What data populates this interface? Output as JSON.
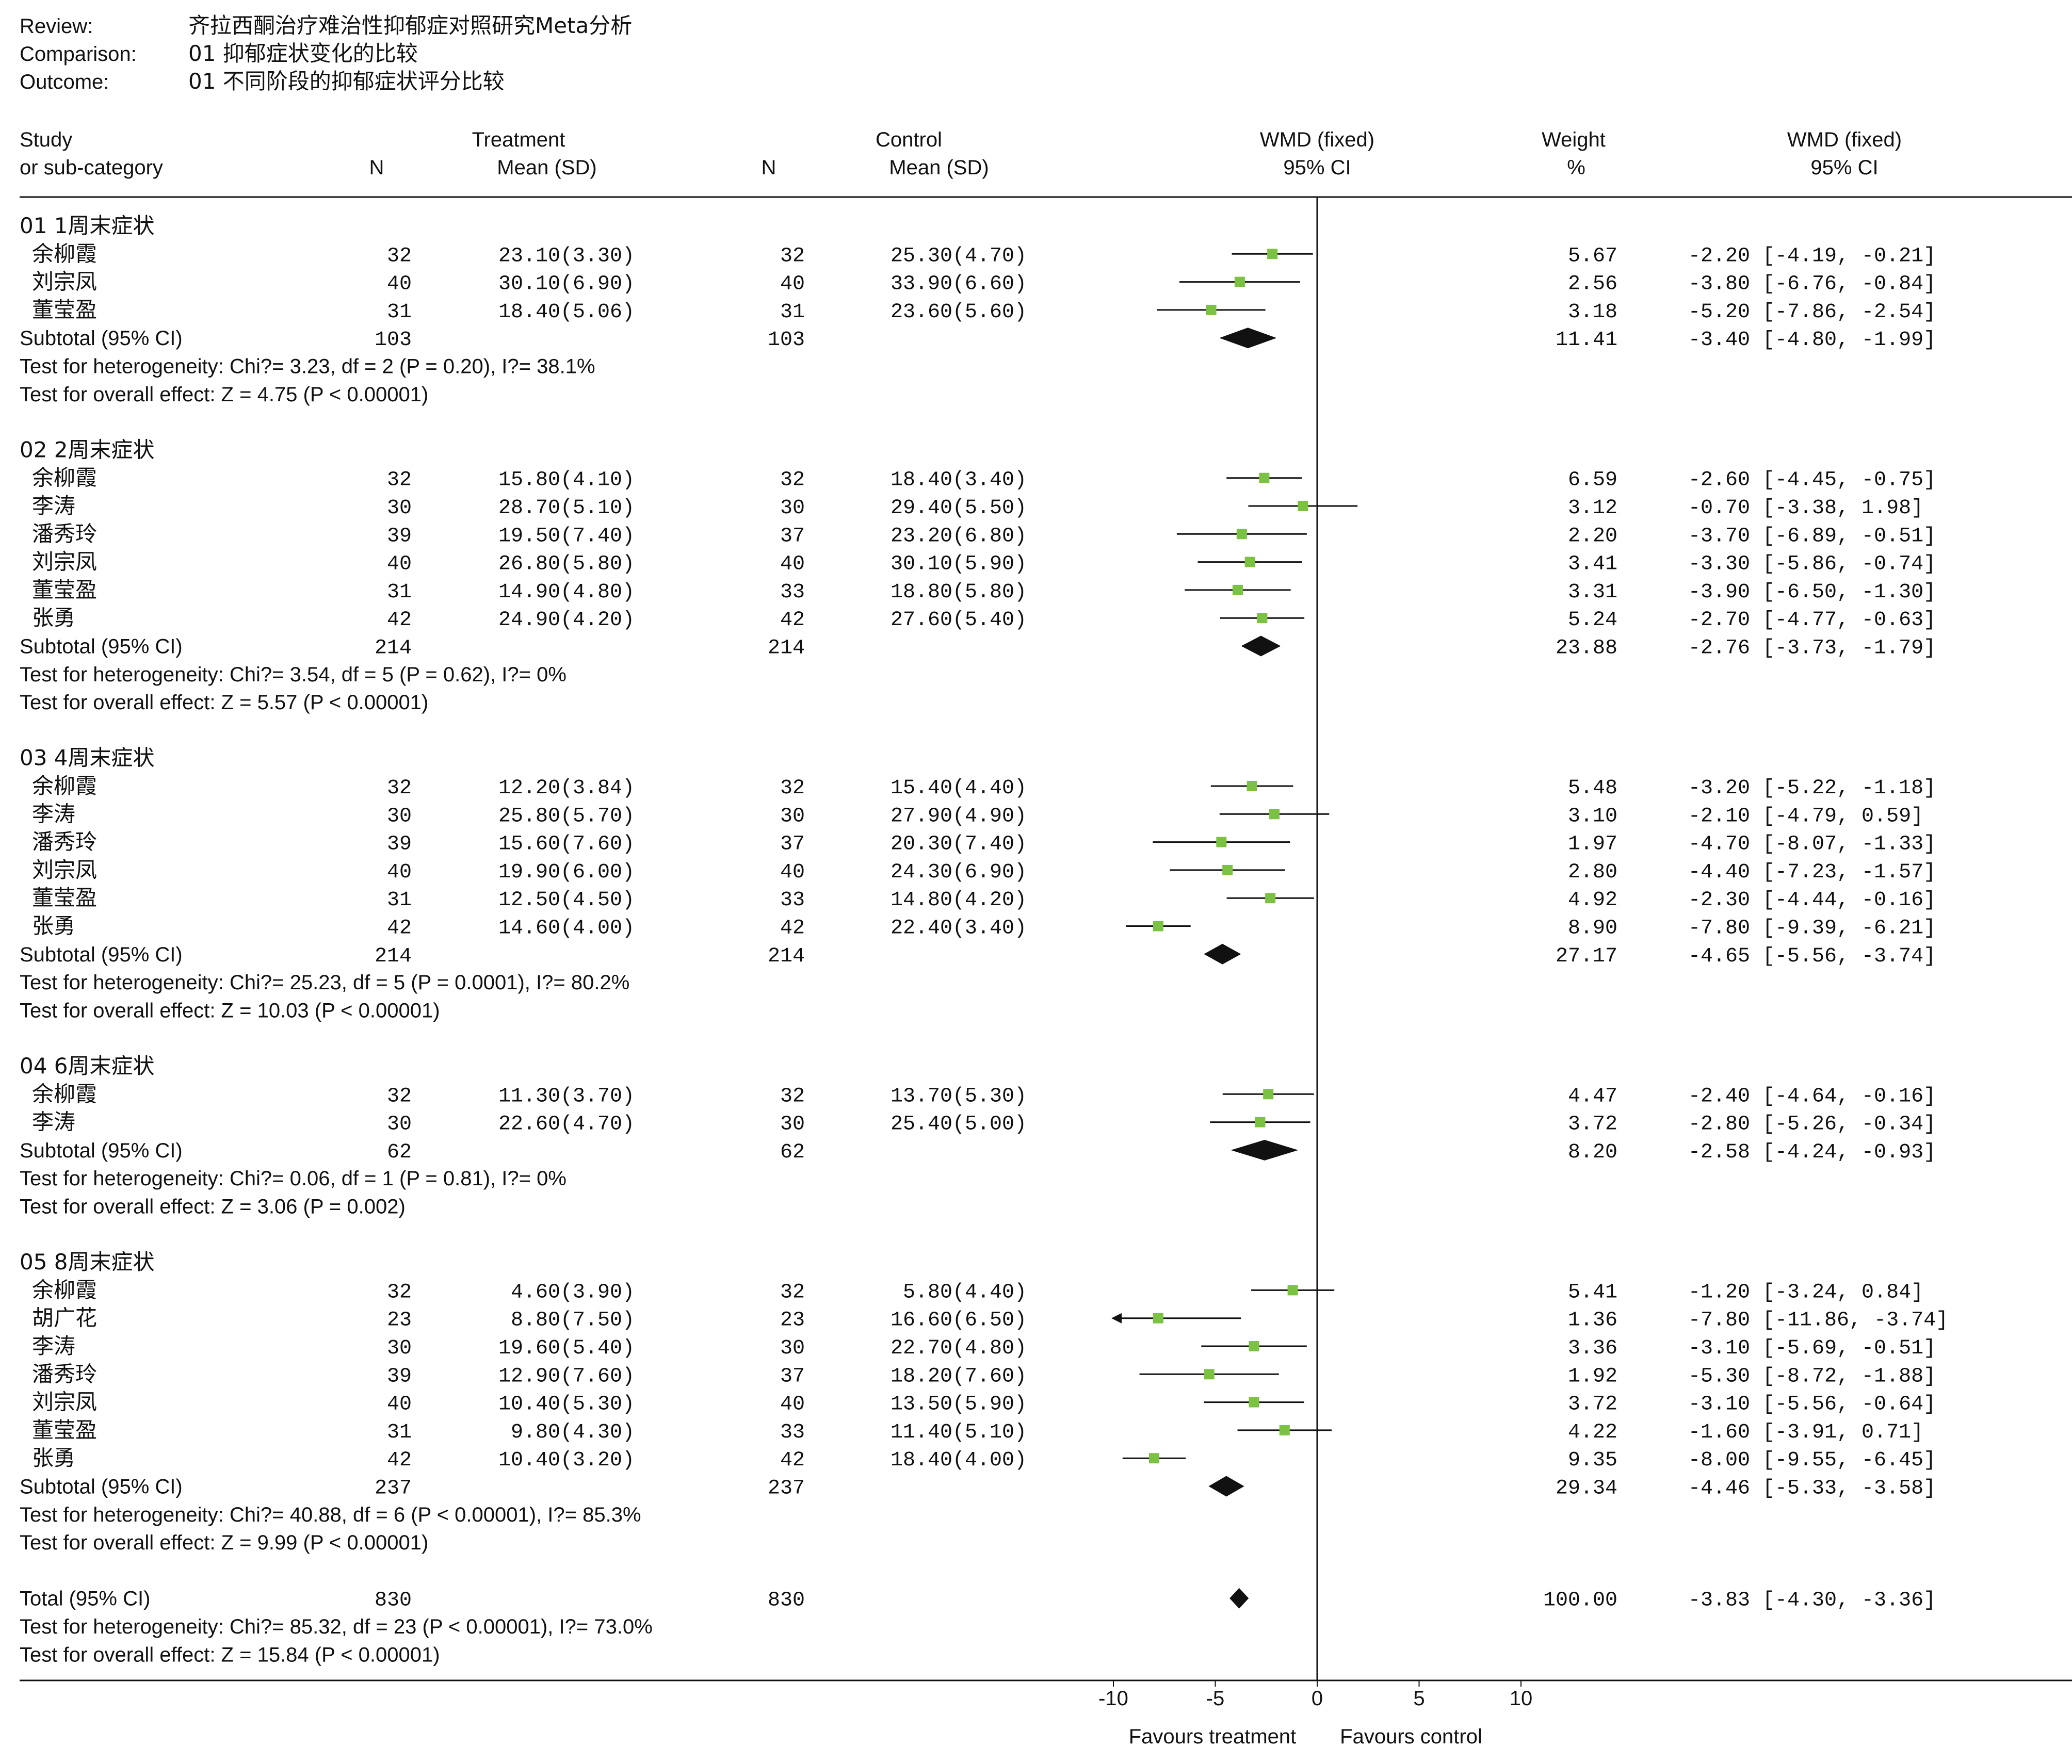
{
  "meta": {
    "review_label": "Review:",
    "review": "齐拉西酮治疗难治性抑郁症对照研究Meta分析",
    "comparison_label": "Comparison:",
    "comparison": "01 抑郁症状变化的比较",
    "outcome_label": "Outcome:",
    "outcome": "01 不同阶段的抑郁症状评分比较"
  },
  "columns": {
    "study": "Study",
    "subcat": "or sub-category",
    "treatment": "Treatment",
    "t_n": "N",
    "t_mean": "Mean (SD)",
    "control": "Control",
    "c_n": "N",
    "c_mean": "Mean (SD)",
    "plot1": "WMD (fixed)",
    "plot2": "95% CI",
    "weight1": "Weight",
    "weight2": "%",
    "est1": "WMD (fixed)",
    "est2": "95% CI"
  },
  "chart_data": {
    "type": "forest",
    "xlim": [
      -10,
      10
    ],
    "ticks": [
      "-10",
      "-5",
      "0",
      "5",
      "10"
    ],
    "favours_left": "Favours treatment",
    "favours_right": "Favours control",
    "accent_color": "#7cc242",
    "groups": [
      {
        "title": "01 1周末症状",
        "studies": [
          {
            "name": "余柳霞",
            "tn": "32",
            "tmean": "23.10(3.30)",
            "cn": "32",
            "cmean": "25.30(4.70)",
            "weight": "5.67",
            "ci": "-2.20 [-4.19, -0.21]",
            "est": -2.2,
            "lo": -4.19,
            "hi": -0.21
          },
          {
            "name": "刘宗凤",
            "tn": "40",
            "tmean": "30.10(6.90)",
            "cn": "40",
            "cmean": "33.90(6.60)",
            "weight": "2.56",
            "ci": "-3.80 [-6.76, -0.84]",
            "est": -3.8,
            "lo": -6.76,
            "hi": -0.84
          },
          {
            "name": "董莹盈",
            "tn": "31",
            "tmean": "18.40(5.06)",
            "cn": "31",
            "cmean": "23.60(5.60)",
            "weight": "3.18",
            "ci": "-5.20 [-7.86, -2.54]",
            "est": -5.2,
            "lo": -7.86,
            "hi": -2.54
          }
        ],
        "subtotal": {
          "label": "Subtotal (95% CI)",
          "tn": "103",
          "cn": "103",
          "weight": "11.41",
          "ci": "-3.40 [-4.80, -1.99]",
          "est": -3.4,
          "lo": -4.8,
          "hi": -1.99
        },
        "het": "Test for heterogeneity: Chi?= 3.23, df = 2 (P = 0.20), I?= 38.1%",
        "overall": "Test for overall effect: Z = 4.75 (P < 0.00001)"
      },
      {
        "title": "02 2周末症状",
        "studies": [
          {
            "name": "余柳霞",
            "tn": "32",
            "tmean": "15.80(4.10)",
            "cn": "32",
            "cmean": "18.40(3.40)",
            "weight": "6.59",
            "ci": "-2.60 [-4.45, -0.75]",
            "est": -2.6,
            "lo": -4.45,
            "hi": -0.75
          },
          {
            "name": "李涛",
            "tn": "30",
            "tmean": "28.70(5.10)",
            "cn": "30",
            "cmean": "29.40(5.50)",
            "weight": "3.12",
            "ci": "-0.70 [-3.38, 1.98]",
            "est": -0.7,
            "lo": -3.38,
            "hi": 1.98
          },
          {
            "name": "潘秀玲",
            "tn": "39",
            "tmean": "19.50(7.40)",
            "cn": "37",
            "cmean": "23.20(6.80)",
            "weight": "2.20",
            "ci": "-3.70 [-6.89, -0.51]",
            "est": -3.7,
            "lo": -6.89,
            "hi": -0.51
          },
          {
            "name": "刘宗凤",
            "tn": "40",
            "tmean": "26.80(5.80)",
            "cn": "40",
            "cmean": "30.10(5.90)",
            "weight": "3.41",
            "ci": "-3.30 [-5.86, -0.74]",
            "est": -3.3,
            "lo": -5.86,
            "hi": -0.74
          },
          {
            "name": "董莹盈",
            "tn": "31",
            "tmean": "14.90(4.80)",
            "cn": "33",
            "cmean": "18.80(5.80)",
            "weight": "3.31",
            "ci": "-3.90 [-6.50, -1.30]",
            "est": -3.9,
            "lo": -6.5,
            "hi": -1.3
          },
          {
            "name": "张勇",
            "tn": "42",
            "tmean": "24.90(4.20)",
            "cn": "42",
            "cmean": "27.60(5.40)",
            "weight": "5.24",
            "ci": "-2.70 [-4.77, -0.63]",
            "est": -2.7,
            "lo": -4.77,
            "hi": -0.63
          }
        ],
        "subtotal": {
          "label": "Subtotal (95% CI)",
          "tn": "214",
          "cn": "214",
          "weight": "23.88",
          "ci": "-2.76 [-3.73, -1.79]",
          "est": -2.76,
          "lo": -3.73,
          "hi": -1.79
        },
        "het": "Test for heterogeneity: Chi?= 3.54, df = 5 (P = 0.62), I?= 0%",
        "overall": "Test for overall effect: Z = 5.57 (P < 0.00001)"
      },
      {
        "title": "03 4周末症状",
        "studies": [
          {
            "name": "余柳霞",
            "tn": "32",
            "tmean": "12.20(3.84)",
            "cn": "32",
            "cmean": "15.40(4.40)",
            "weight": "5.48",
            "ci": "-3.20 [-5.22, -1.18]",
            "est": -3.2,
            "lo": -5.22,
            "hi": -1.18
          },
          {
            "name": "李涛",
            "tn": "30",
            "tmean": "25.80(5.70)",
            "cn": "30",
            "cmean": "27.90(4.90)",
            "weight": "3.10",
            "ci": "-2.10 [-4.79, 0.59]",
            "est": -2.1,
            "lo": -4.79,
            "hi": 0.59
          },
          {
            "name": "潘秀玲",
            "tn": "39",
            "tmean": "15.60(7.60)",
            "cn": "37",
            "cmean": "20.30(7.40)",
            "weight": "1.97",
            "ci": "-4.70 [-8.07, -1.33]",
            "est": -4.7,
            "lo": -8.07,
            "hi": -1.33
          },
          {
            "name": "刘宗凤",
            "tn": "40",
            "tmean": "19.90(6.00)",
            "cn": "40",
            "cmean": "24.30(6.90)",
            "weight": "2.80",
            "ci": "-4.40 [-7.23, -1.57]",
            "est": -4.4,
            "lo": -7.23,
            "hi": -1.57
          },
          {
            "name": "董莹盈",
            "tn": "31",
            "tmean": "12.50(4.50)",
            "cn": "33",
            "cmean": "14.80(4.20)",
            "weight": "4.92",
            "ci": "-2.30 [-4.44, -0.16]",
            "est": -2.3,
            "lo": -4.44,
            "hi": -0.16
          },
          {
            "name": "张勇",
            "tn": "42",
            "tmean": "14.60(4.00)",
            "cn": "42",
            "cmean": "22.40(3.40)",
            "weight": "8.90",
            "ci": "-7.80 [-9.39, -6.21]",
            "est": -7.8,
            "lo": -9.39,
            "hi": -6.21
          }
        ],
        "subtotal": {
          "label": "Subtotal (95% CI)",
          "tn": "214",
          "cn": "214",
          "weight": "27.17",
          "ci": "-4.65 [-5.56, -3.74]",
          "est": -4.65,
          "lo": -5.56,
          "hi": -3.74
        },
        "het": "Test for heterogeneity: Chi?= 25.23, df = 5 (P = 0.0001), I?= 80.2%",
        "overall": "Test for overall effect: Z = 10.03 (P < 0.00001)"
      },
      {
        "title": "04 6周末症状",
        "studies": [
          {
            "name": "余柳霞",
            "tn": "32",
            "tmean": "11.30(3.70)",
            "cn": "32",
            "cmean": "13.70(5.30)",
            "weight": "4.47",
            "ci": "-2.40 [-4.64, -0.16]",
            "est": -2.4,
            "lo": -4.64,
            "hi": -0.16
          },
          {
            "name": "李涛",
            "tn": "30",
            "tmean": "22.60(4.70)",
            "cn": "30",
            "cmean": "25.40(5.00)",
            "weight": "3.72",
            "ci": "-2.80 [-5.26, -0.34]",
            "est": -2.8,
            "lo": -5.26,
            "hi": -0.34
          }
        ],
        "subtotal": {
          "label": "Subtotal (95% CI)",
          "tn": "62",
          "cn": "62",
          "weight": "8.20",
          "ci": "-2.58 [-4.24, -0.93]",
          "est": -2.58,
          "lo": -4.24,
          "hi": -0.93
        },
        "het": "Test for heterogeneity: Chi?= 0.06, df = 1 (P = 0.81), I?= 0%",
        "overall": "Test for overall effect: Z = 3.06 (P = 0.002)"
      },
      {
        "title": "05 8周末症状",
        "studies": [
          {
            "name": "余柳霞",
            "tn": "32",
            "tmean": "4.60(3.90)",
            "cn": "32",
            "cmean": "5.80(4.40)",
            "weight": "5.41",
            "ci": "-1.20 [-3.24, 0.84]",
            "est": -1.2,
            "lo": -3.24,
            "hi": 0.84
          },
          {
            "name": "胡广花",
            "tn": "23",
            "tmean": "8.80(7.50)",
            "cn": "23",
            "cmean": "16.60(6.50)",
            "weight": "1.36",
            "ci": "-7.80 [-11.86, -3.74]",
            "est": -7.8,
            "lo": -11.86,
            "hi": -3.74
          },
          {
            "name": "李涛",
            "tn": "30",
            "tmean": "19.60(5.40)",
            "cn": "30",
            "cmean": "22.70(4.80)",
            "weight": "3.36",
            "ci": "-3.10 [-5.69, -0.51]",
            "est": -3.1,
            "lo": -5.69,
            "hi": -0.51
          },
          {
            "name": "潘秀玲",
            "tn": "39",
            "tmean": "12.90(7.60)",
            "cn": "37",
            "cmean": "18.20(7.60)",
            "weight": "1.92",
            "ci": "-5.30 [-8.72, -1.88]",
            "est": -5.3,
            "lo": -8.72,
            "hi": -1.88
          },
          {
            "name": "刘宗凤",
            "tn": "40",
            "tmean": "10.40(5.30)",
            "cn": "40",
            "cmean": "13.50(5.90)",
            "weight": "3.72",
            "ci": "-3.10 [-5.56, -0.64]",
            "est": -3.1,
            "lo": -5.56,
            "hi": -0.64
          },
          {
            "name": "董莹盈",
            "tn": "31",
            "tmean": "9.80(4.30)",
            "cn": "33",
            "cmean": "11.40(5.10)",
            "weight": "4.22",
            "ci": "-1.60 [-3.91, 0.71]",
            "est": -1.6,
            "lo": -3.91,
            "hi": 0.71
          },
          {
            "name": "张勇",
            "tn": "42",
            "tmean": "10.40(3.20)",
            "cn": "42",
            "cmean": "18.40(4.00)",
            "weight": "9.35",
            "ci": "-8.00 [-9.55, -6.45]",
            "est": -8.0,
            "lo": -9.55,
            "hi": -6.45
          }
        ],
        "subtotal": {
          "label": "Subtotal (95% CI)",
          "tn": "237",
          "cn": "237",
          "weight": "29.34",
          "ci": "-4.46 [-5.33, -3.58]",
          "est": -4.46,
          "lo": -5.33,
          "hi": -3.58
        },
        "het": "Test for heterogeneity: Chi?= 40.88, df = 6 (P < 0.00001), I?= 85.3%",
        "overall": "Test for overall effect: Z = 9.99 (P < 0.00001)"
      }
    ],
    "total": {
      "label": "Total (95% CI)",
      "tn": "830",
      "cn": "830",
      "weight": "100.00",
      "ci": "-3.83 [-4.30, -3.36]",
      "est": -3.83,
      "lo": -4.3,
      "hi": -3.36,
      "het": "Test for heterogeneity: Chi?= 85.32, df = 23 (P < 0.00001), I?= 73.0%",
      "overall": "Test for overall effect: Z = 15.84 (P < 0.00001)"
    }
  }
}
